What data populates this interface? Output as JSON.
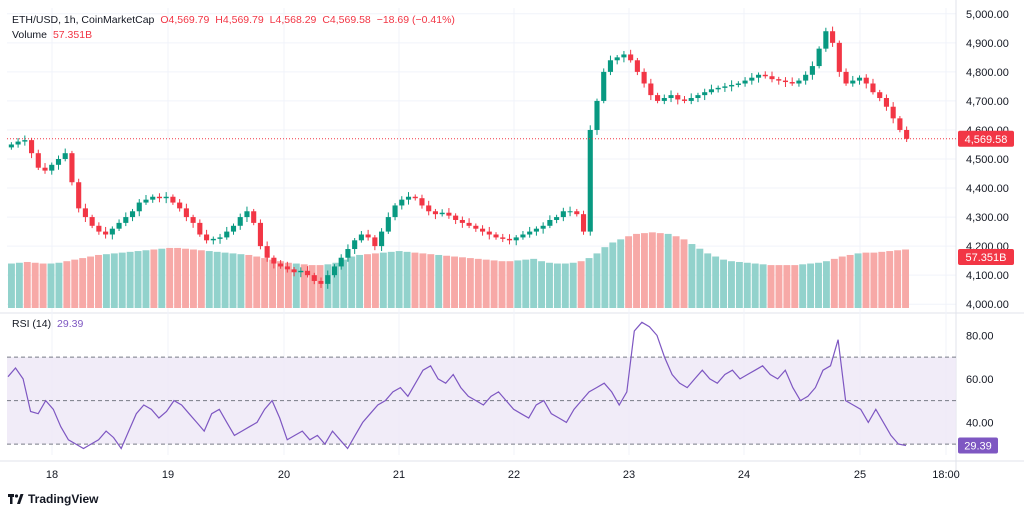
{
  "legend": {
    "symbol": "ETH/USD, 1h, CoinMarketCap",
    "open": "O4,569.79",
    "high": "H4,569.79",
    "low": "L4,568.29",
    "close": "C4,569.58",
    "change": "−18.69 (−0.41%)",
    "volume_label": "Volume",
    "volume_value": "57.351B"
  },
  "rsi_legend": {
    "label": "RSI (14)",
    "value": "29.39"
  },
  "price_badge": "4,569.58",
  "volume_badge": "57.351B",
  "rsi_badge": "29.39",
  "brand": "TradingView",
  "colors": {
    "up": "#089981",
    "down": "#f23645",
    "up_vol": "#92d2cc",
    "down_vol": "#f7a9a7",
    "rsi": "#7e57c2",
    "rsi_band": "#ede7f6"
  },
  "chart_data": {
    "type": "candlestick",
    "title": "ETH/USD, 1h, CoinMarketCap",
    "x_ticks": [
      "18",
      "19",
      "20",
      "21",
      "22",
      "23",
      "24",
      "25",
      "18:00"
    ],
    "price_axis": {
      "ticks": [
        "4,000.00",
        "4,100.00",
        "4,200.00",
        "4,300.00",
        "4,400.00",
        "4,500.00",
        "4,600.00",
        "4,700.00",
        "4,800.00",
        "4,900.00",
        "5,000.00"
      ],
      "range": [
        3980,
        5020
      ]
    },
    "last_price": 4569.58,
    "price_path": [
      4550,
      4560,
      4565,
      4520,
      4470,
      4460,
      4480,
      4500,
      4520,
      4420,
      4330,
      4300,
      4270,
      4250,
      4240,
      4260,
      4280,
      4300,
      4320,
      4350,
      4360,
      4370,
      4365,
      4370,
      4350,
      4330,
      4300,
      4280,
      4240,
      4220,
      4225,
      4230,
      4250,
      4270,
      4300,
      4320,
      4280,
      4200,
      4160,
      4140,
      4130,
      4120,
      4110,
      4115,
      4100,
      4080,
      4070,
      4100,
      4130,
      4160,
      4190,
      4220,
      4240,
      4230,
      4200,
      4250,
      4300,
      4340,
      4360,
      4370,
      4365,
      4340,
      4320,
      4310,
      4315,
      4305,
      4290,
      4280,
      4270,
      4260,
      4250,
      4240,
      4230,
      4225,
      4220,
      4230,
      4240,
      4250,
      4260,
      4270,
      4290,
      4300,
      4320,
      4320,
      4310,
      4250,
      4600,
      4700,
      4800,
      4840,
      4850,
      4860,
      4840,
      4800,
      4760,
      4720,
      4700,
      4710,
      4720,
      4705,
      4700,
      4710,
      4720,
      4730,
      4740,
      4745,
      4750,
      4755,
      4760,
      4770,
      4780,
      4790,
      4785,
      4775,
      4770,
      4765,
      4760,
      4770,
      4790,
      4820,
      4880,
      4940,
      4900,
      4800,
      4760,
      4770,
      4780,
      4760,
      4730,
      4710,
      4680,
      4640,
      4600,
      4569.58
    ],
    "volume_series_B": [
      57,
      58,
      59,
      58,
      57,
      57,
      58,
      60,
      62,
      64,
      66,
      68,
      69,
      70,
      71,
      72,
      73,
      74,
      75,
      76,
      77,
      77,
      76,
      75,
      74,
      73,
      72,
      71,
      70,
      69,
      68,
      66,
      64,
      62,
      60,
      58,
      57,
      56,
      55,
      55,
      56,
      58,
      62,
      66,
      68,
      69,
      70,
      71,
      72,
      73,
      72,
      71,
      70,
      69,
      68,
      67,
      66,
      65,
      64,
      63,
      62,
      61,
      60,
      60,
      61,
      62,
      63,
      60,
      58,
      57,
      57,
      58,
      60,
      64,
      70,
      78,
      84,
      88,
      92,
      95,
      96,
      97,
      96,
      95,
      92,
      88,
      82,
      76,
      70,
      66,
      62,
      60,
      59,
      58,
      57,
      56,
      55,
      55,
      55,
      55,
      56,
      57,
      58,
      60,
      63,
      66,
      68,
      70,
      71,
      71,
      72,
      73,
      74,
      75
    ],
    "rsi": {
      "period": 14,
      "last": 29.39,
      "axis_ticks": [
        "40.00",
        "60.00",
        "80.00"
      ],
      "range": [
        25,
        88
      ],
      "levels": [
        30,
        50,
        70
      ],
      "values": [
        61,
        65,
        60,
        45,
        44,
        50,
        46,
        38,
        32,
        30,
        28,
        30,
        32,
        36,
        33,
        28,
        36,
        44,
        48,
        46,
        42,
        45,
        50,
        48,
        44,
        40,
        36,
        44,
        46,
        40,
        34,
        36,
        38,
        40,
        46,
        50,
        42,
        32,
        34,
        36,
        32,
        34,
        30,
        36,
        32,
        28,
        34,
        40,
        44,
        48,
        50,
        54,
        56,
        52,
        58,
        64,
        66,
        60,
        58,
        62,
        56,
        52,
        50,
        48,
        52,
        54,
        50,
        46,
        44,
        42,
        48,
        50,
        44,
        42,
        40,
        46,
        50,
        54,
        56,
        58,
        54,
        48,
        54,
        82,
        86,
        84,
        80,
        70,
        62,
        58,
        56,
        60,
        64,
        60,
        58,
        62,
        64,
        60,
        62,
        64,
        66,
        62,
        60,
        64,
        56,
        50,
        52,
        56,
        64,
        66,
        78,
        50,
        48,
        46,
        40,
        46,
        40,
        34,
        30,
        29.39
      ]
    }
  }
}
